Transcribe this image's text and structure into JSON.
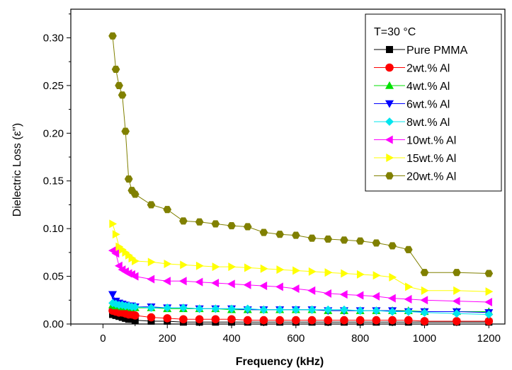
{
  "chart_data": {
    "type": "line",
    "xlabel": "Frequency (kHz)",
    "ylabel": "Dielectric Loss (ε'')",
    "xlim": [
      -100,
      1250
    ],
    "ylim": [
      0,
      0.33
    ],
    "xticks": [
      0,
      200,
      400,
      600,
      800,
      1000,
      1200
    ],
    "xtick_labels": [
      "0",
      "200",
      "400",
      "600",
      "800",
      "1000",
      "1200"
    ],
    "yticks": [
      0,
      0.05,
      0.1,
      0.15,
      0.2,
      0.25,
      0.3
    ],
    "ytick_labels": [
      "0.00",
      "0.05",
      "0.10",
      "0.15",
      "0.20",
      "0.25",
      "0.30"
    ],
    "grid": false,
    "legend": {
      "position": "top-right",
      "title": "T=30 °C"
    },
    "series": [
      {
        "name": "Pure PMMA",
        "color": "#000000",
        "marker": "square",
        "x": [
          30,
          40,
          50,
          60,
          70,
          80,
          90,
          100,
          150,
          200,
          250,
          300,
          350,
          400,
          450,
          500,
          550,
          600,
          650,
          700,
          750,
          800,
          850,
          900,
          950,
          1000,
          1100,
          1200
        ],
        "y": [
          0.01,
          0.009,
          0.008,
          0.007,
          0.006,
          0.005,
          0.005,
          0.004,
          0.003,
          0.003,
          0.002,
          0.002,
          0.002,
          0.002,
          0.002,
          0.002,
          0.002,
          0.002,
          0.002,
          0.002,
          0.002,
          0.002,
          0.002,
          0.002,
          0.002,
          0.002,
          0.002,
          0.002
        ]
      },
      {
        "name": "2wt.% Al",
        "color": "#ff0000",
        "marker": "circle",
        "x": [
          30,
          40,
          50,
          60,
          70,
          80,
          90,
          100,
          150,
          200,
          250,
          300,
          350,
          400,
          450,
          500,
          550,
          600,
          650,
          700,
          750,
          800,
          850,
          900,
          950,
          1000,
          1100,
          1200
        ],
        "y": [
          0.014,
          0.013,
          0.012,
          0.012,
          0.011,
          0.01,
          0.01,
          0.009,
          0.007,
          0.006,
          0.005,
          0.005,
          0.005,
          0.005,
          0.004,
          0.004,
          0.004,
          0.004,
          0.004,
          0.004,
          0.004,
          0.004,
          0.004,
          0.004,
          0.004,
          0.003,
          0.003,
          0.003
        ]
      },
      {
        "name": "4wt.% Al",
        "color": "#00e000",
        "marker": "triangle-up",
        "x": [
          30,
          40,
          50,
          60,
          70,
          80,
          90,
          100,
          150,
          200,
          250,
          300,
          350,
          400,
          450,
          500,
          550,
          600,
          650,
          700,
          750,
          800,
          850,
          900,
          950,
          1000,
          1100,
          1200
        ],
        "y": [
          0.02,
          0.019,
          0.019,
          0.018,
          0.018,
          0.018,
          0.017,
          0.017,
          0.017,
          0.016,
          0.016,
          0.016,
          0.016,
          0.015,
          0.015,
          0.015,
          0.015,
          0.015,
          0.015,
          0.014,
          0.014,
          0.014,
          0.014,
          0.014,
          0.014,
          0.013,
          0.013,
          0.013
        ]
      },
      {
        "name": "6wt.% Al",
        "color": "#0000ff",
        "marker": "triangle-down",
        "x": [
          30,
          40,
          50,
          60,
          70,
          80,
          90,
          100,
          150,
          200,
          250,
          300,
          350,
          400,
          450,
          500,
          550,
          600,
          650,
          700,
          750,
          800,
          850,
          900,
          950,
          1000,
          1100,
          1200
        ],
        "y": [
          0.031,
          0.024,
          0.022,
          0.021,
          0.02,
          0.019,
          0.019,
          0.018,
          0.018,
          0.017,
          0.017,
          0.016,
          0.016,
          0.016,
          0.015,
          0.015,
          0.015,
          0.015,
          0.015,
          0.014,
          0.014,
          0.014,
          0.014,
          0.014,
          0.013,
          0.013,
          0.013,
          0.012
        ]
      },
      {
        "name": "8wt.% Al",
        "color": "#00e5ee",
        "marker": "diamond",
        "x": [
          30,
          40,
          50,
          60,
          70,
          80,
          90,
          100,
          150,
          200,
          250,
          300,
          350,
          400,
          450,
          500,
          550,
          600,
          650,
          700,
          750,
          800,
          850,
          900,
          950,
          1000,
          1100,
          1200
        ],
        "y": [
          0.022,
          0.021,
          0.02,
          0.02,
          0.019,
          0.019,
          0.018,
          0.018,
          0.017,
          0.017,
          0.017,
          0.016,
          0.016,
          0.016,
          0.016,
          0.015,
          0.015,
          0.015,
          0.015,
          0.015,
          0.015,
          0.014,
          0.014,
          0.013,
          0.013,
          0.012,
          0.011,
          0.01
        ]
      },
      {
        "name": "10wt.% Al",
        "color": "#ff00ff",
        "marker": "triangle-left",
        "x": [
          30,
          40,
          50,
          60,
          70,
          80,
          90,
          100,
          150,
          200,
          250,
          300,
          350,
          400,
          450,
          500,
          550,
          600,
          650,
          700,
          750,
          800,
          850,
          900,
          950,
          1000,
          1100,
          1200
        ],
        "y": [
          0.077,
          0.074,
          0.061,
          0.057,
          0.055,
          0.053,
          0.052,
          0.05,
          0.047,
          0.045,
          0.045,
          0.044,
          0.043,
          0.042,
          0.041,
          0.04,
          0.039,
          0.037,
          0.035,
          0.032,
          0.031,
          0.03,
          0.029,
          0.027,
          0.026,
          0.025,
          0.024,
          0.023
        ]
      },
      {
        "name": "15wt.% Al",
        "color": "#ffff00",
        "marker": "triangle-right",
        "x": [
          30,
          40,
          50,
          60,
          70,
          80,
          90,
          100,
          150,
          200,
          250,
          300,
          350,
          400,
          450,
          500,
          550,
          600,
          650,
          700,
          750,
          800,
          850,
          900,
          950,
          1000,
          1100,
          1200
        ],
        "y": [
          0.105,
          0.094,
          0.081,
          0.078,
          0.075,
          0.072,
          0.069,
          0.066,
          0.065,
          0.063,
          0.062,
          0.061,
          0.06,
          0.06,
          0.059,
          0.058,
          0.057,
          0.056,
          0.055,
          0.054,
          0.053,
          0.052,
          0.051,
          0.049,
          0.039,
          0.035,
          0.035,
          0.034
        ]
      },
      {
        "name": "20wt.% Al",
        "color": "#808000",
        "marker": "hexagon",
        "x": [
          30,
          40,
          50,
          60,
          70,
          80,
          90,
          100,
          150,
          200,
          250,
          300,
          350,
          400,
          450,
          500,
          550,
          600,
          650,
          700,
          750,
          800,
          850,
          900,
          950,
          1000,
          1100,
          1200
        ],
        "y": [
          0.302,
          0.267,
          0.25,
          0.24,
          0.202,
          0.152,
          0.14,
          0.136,
          0.125,
          0.12,
          0.108,
          0.107,
          0.105,
          0.103,
          0.102,
          0.096,
          0.094,
          0.093,
          0.09,
          0.089,
          0.088,
          0.087,
          0.085,
          0.082,
          0.078,
          0.054,
          0.054,
          0.053
        ]
      }
    ]
  }
}
